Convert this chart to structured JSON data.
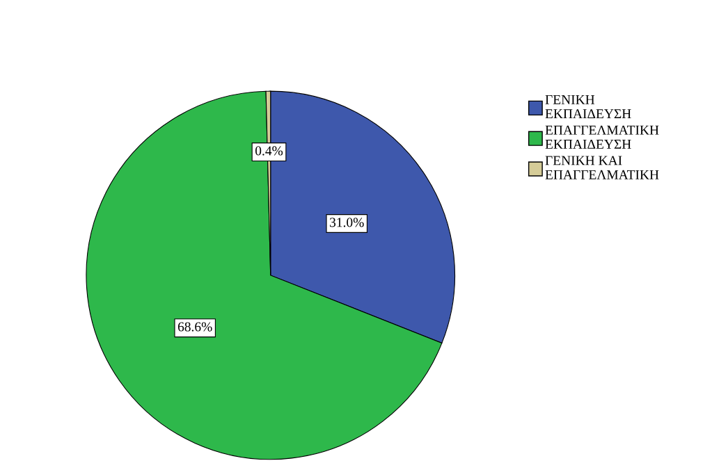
{
  "chart_data": {
    "type": "pie",
    "categories": [
      "ΓΕΝΙΚΗ ΕΚΠΑΙΔΕΥΣΗ",
      "ΕΠΑΓΓΕΛΜΑΤΙΚΗ ΕΚΠΑΙΔΕΥΣΗ",
      "ΓΕΝΙΚΗ ΚΑΙ ΕΠΑΓΓΕΛΜΑΤΙΚΗ"
    ],
    "values": [
      31.0,
      68.6,
      0.4
    ],
    "colors": [
      "#3e58ac",
      "#2eb84b",
      "#d5cc98"
    ],
    "value_labels": [
      "31.0%",
      "68.6%",
      "0.4%"
    ],
    "legend": "right"
  }
}
